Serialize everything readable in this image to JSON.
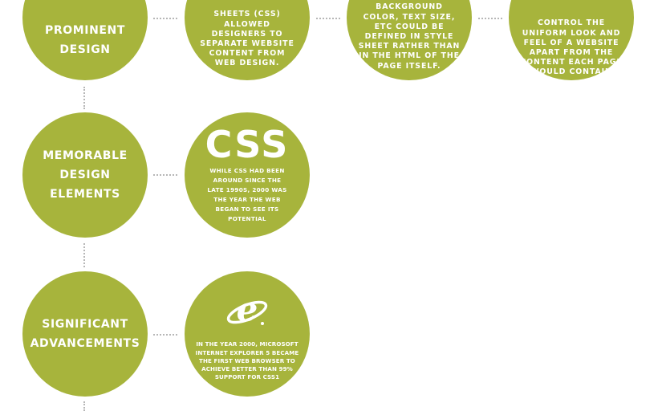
{
  "rows": [
    {
      "label": "PROMINENT DESIGN",
      "cards": [
        "SHEETS (CSS) ALLOWED DESIGNERS TO SEPARATE WEBSITE CONTENT FROM WEB DESIGN.",
        "SUCH AS BACKGROUND COLOR, TEXT SIZE, ETC COULD BE DEFINED IN STYLE SHEET RATHER THAN IN THE HTML OF THE PAGE ITSELF.",
        "CONTROL THE UNIFORM LOOK AND FEEL OF A WEBSITE APART FROM THE CONTENT EACH PAGE WOULD CONTAIN"
      ]
    },
    {
      "label": "MEMORABLE DESIGN ELEMENTS",
      "logo_text": "CSS",
      "card_text": "WHILE CSS HAD BEEN AROUND SINCE THE LATE 1990s, 2000 WAS THE YEAR THE WEB BEGAN TO SEE ITS POTENTIAL"
    },
    {
      "label": "SIGNIFICANT ADVANCEMENTS",
      "logo_icon": "internet-explorer-icon",
      "card_text": "IN THE YEAR 2000, MICROSOFT INTERNET EXPLORER 5 BECAME THE FIRST WEB BROWSER TO ACHIEVE BETTER THAN 99% SUPPORT FOR CSS1"
    }
  ],
  "colors": {
    "circle": "#a7b43c",
    "text": "#ffffff",
    "connector": "#b7b7b7"
  }
}
